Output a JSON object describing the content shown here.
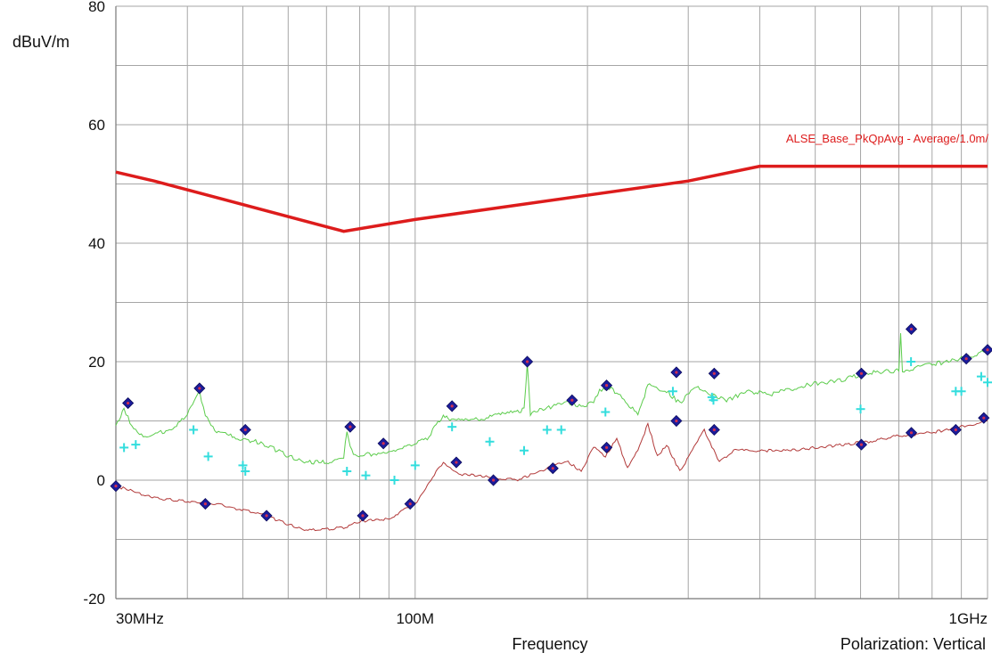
{
  "chart_data": {
    "type": "line",
    "ylabel": "dBuV/m",
    "xlabel": "Frequency",
    "polarization": "Polarization: Vertical",
    "xscale": "log",
    "xlim": [
      30,
      1000
    ],
    "ylim": [
      -20,
      80
    ],
    "y_ticks": [
      -20,
      0,
      20,
      40,
      60,
      80
    ],
    "x_tick_labels": [
      {
        "f": 30,
        "label": "30MHz"
      },
      {
        "f": 100,
        "label": "100M"
      },
      {
        "f": 1000,
        "label": "1GHz"
      }
    ],
    "grid": true,
    "colors": {
      "limit": "#dd1c1c",
      "peak_trace": "#5ccc4c",
      "average_trace": "#b23a3a",
      "marker": "#1c1c9c",
      "marker_center": "#d03050",
      "qp_marker": "#33dddd",
      "grid": "#a6a6a6"
    },
    "limit_line": {
      "name": "ALSE_Base_PkQpAvg  - Average/1.0m/",
      "points": [
        [
          30,
          52
        ],
        [
          35,
          50.5
        ],
        [
          75,
          42
        ],
        [
          100,
          44
        ],
        [
          300,
          50.5
        ],
        [
          400,
          53
        ],
        [
          1000,
          53
        ]
      ]
    },
    "peak_trace": [
      [
        30,
        9
      ],
      [
        31,
        12
      ],
      [
        32,
        9
      ],
      [
        34,
        7
      ],
      [
        38,
        9
      ],
      [
        40,
        11
      ],
      [
        42,
        15
      ],
      [
        43,
        11
      ],
      [
        45,
        8
      ],
      [
        50,
        7
      ],
      [
        55,
        6
      ],
      [
        60,
        4
      ],
      [
        65,
        3
      ],
      [
        70,
        3
      ],
      [
        75,
        4
      ],
      [
        76,
        8
      ],
      [
        78,
        4
      ],
      [
        85,
        4.5
      ],
      [
        95,
        5.5
      ],
      [
        105,
        7
      ],
      [
        112,
        11
      ],
      [
        115,
        10
      ],
      [
        125,
        10
      ],
      [
        140,
        11
      ],
      [
        150,
        11.5
      ],
      [
        155,
        12
      ],
      [
        157,
        20
      ],
      [
        159,
        11
      ],
      [
        165,
        12
      ],
      [
        175,
        12.5
      ],
      [
        185,
        13
      ],
      [
        195,
        12.5
      ],
      [
        205,
        13
      ],
      [
        210,
        15
      ],
      [
        220,
        15.5
      ],
      [
        230,
        14
      ],
      [
        245,
        11
      ],
      [
        255,
        16
      ],
      [
        275,
        15
      ],
      [
        290,
        13
      ],
      [
        310,
        16
      ],
      [
        330,
        14.5
      ],
      [
        350,
        13.5
      ],
      [
        380,
        15
      ],
      [
        420,
        14.5
      ],
      [
        480,
        16
      ],
      [
        560,
        17
      ],
      [
        610,
        18
      ],
      [
        700,
        18.5
      ],
      [
        705,
        25
      ],
      [
        710,
        18.5
      ],
      [
        800,
        19.5
      ],
      [
        900,
        20.5
      ],
      [
        950,
        21
      ],
      [
        1000,
        22
      ]
    ],
    "average_trace": [
      [
        30,
        -1
      ],
      [
        35,
        -3
      ],
      [
        45,
        -4
      ],
      [
        55,
        -6
      ],
      [
        60,
        -7.5
      ],
      [
        65,
        -8.5
      ],
      [
        75,
        -8
      ],
      [
        80,
        -7
      ],
      [
        90,
        -6.5
      ],
      [
        100,
        -4
      ],
      [
        108,
        1
      ],
      [
        112,
        3
      ],
      [
        120,
        1
      ],
      [
        135,
        0.5
      ],
      [
        150,
        0
      ],
      [
        165,
        1.5
      ],
      [
        175,
        2.5
      ],
      [
        185,
        3
      ],
      [
        195,
        1.5
      ],
      [
        205,
        5.5
      ],
      [
        215,
        4
      ],
      [
        225,
        7
      ],
      [
        235,
        2
      ],
      [
        245,
        5
      ],
      [
        255,
        9.5
      ],
      [
        265,
        4
      ],
      [
        275,
        6
      ],
      [
        290,
        1.5
      ],
      [
        305,
        5
      ],
      [
        320,
        8.5
      ],
      [
        340,
        3
      ],
      [
        360,
        5
      ],
      [
        400,
        5
      ],
      [
        450,
        5
      ],
      [
        560,
        6
      ],
      [
        620,
        6.5
      ],
      [
        700,
        7.5
      ],
      [
        800,
        8
      ],
      [
        900,
        9
      ],
      [
        1000,
        10
      ]
    ],
    "peak_markers": [
      [
        30,
        -1
      ],
      [
        31.5,
        13
      ],
      [
        42,
        15.5
      ],
      [
        50.5,
        8.5
      ],
      [
        77,
        9
      ],
      [
        88,
        6.2
      ],
      [
        116,
        12.5
      ],
      [
        157,
        20
      ],
      [
        188,
        13.5
      ],
      [
        216,
        16
      ],
      [
        286,
        18.2
      ],
      [
        333,
        18
      ],
      [
        602,
        18
      ],
      [
        736,
        25.5
      ],
      [
        918,
        20.5
      ],
      [
        1000,
        22
      ],
      [
        43,
        -4
      ],
      [
        55,
        -6
      ],
      [
        81,
        -6
      ],
      [
        98,
        -4
      ],
      [
        118,
        3
      ],
      [
        137,
        0
      ],
      [
        174,
        2
      ],
      [
        216,
        5.5
      ],
      [
        286,
        10
      ],
      [
        333,
        8.5
      ],
      [
        602,
        6
      ],
      [
        736,
        8
      ],
      [
        880,
        8.5
      ],
      [
        985,
        10.5
      ]
    ],
    "qp_markers": [
      [
        31,
        5.5
      ],
      [
        32.5,
        6
      ],
      [
        41,
        8.5
      ],
      [
        43.5,
        4
      ],
      [
        50,
        2.5
      ],
      [
        50.5,
        1.5
      ],
      [
        76,
        1.5
      ],
      [
        82,
        0.8
      ],
      [
        92,
        0
      ],
      [
        100,
        2.5
      ],
      [
        116,
        9
      ],
      [
        135,
        6.5
      ],
      [
        155,
        5
      ],
      [
        170,
        8.5
      ],
      [
        180,
        8.5
      ],
      [
        215,
        11.5
      ],
      [
        282,
        15
      ],
      [
        330,
        14
      ],
      [
        332,
        13.5
      ],
      [
        600,
        12
      ],
      [
        735,
        20
      ],
      [
        880,
        15
      ],
      [
        900,
        15
      ],
      [
        975,
        17.5
      ],
      [
        1000,
        16.5
      ]
    ]
  }
}
